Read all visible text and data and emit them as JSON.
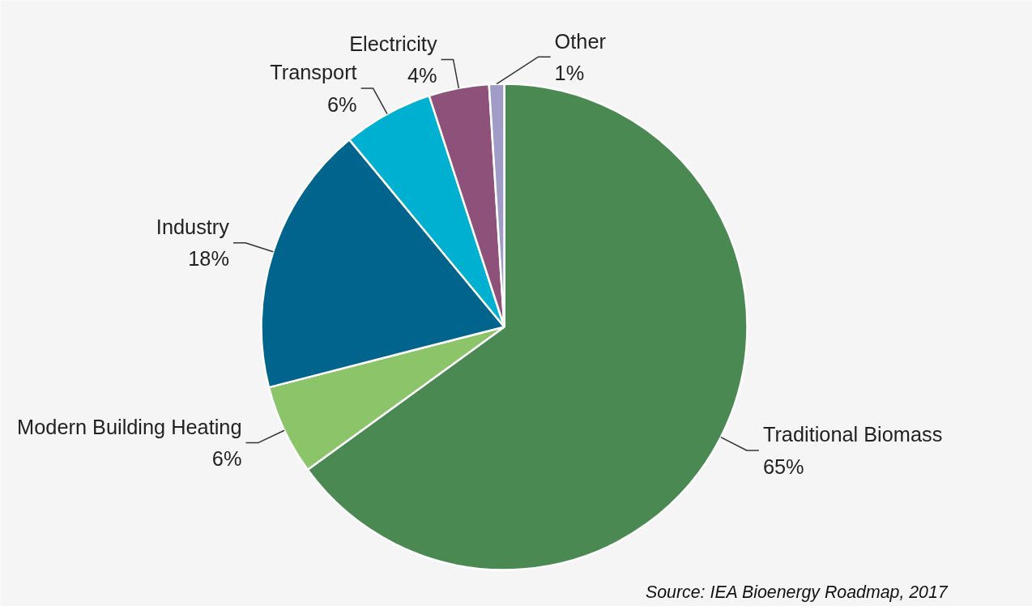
{
  "chart_data": {
    "type": "pie",
    "categories": [
      "Traditional Biomass",
      "Modern Building Heating",
      "Industry",
      "Transport",
      "Electricity",
      "Other"
    ],
    "values": [
      65,
      6,
      18,
      6,
      4,
      1
    ],
    "value_labels": [
      "65%",
      "6%",
      "18%",
      "6%",
      "4%",
      "1%"
    ],
    "colors": [
      "#4a8a52",
      "#8cc46a",
      "#00648c",
      "#00b0d0",
      "#8e527a",
      "#a09cc8"
    ],
    "annotations": [
      "Source: IEA Bioenergy Roadmap, 2017"
    ],
    "legend": false
  }
}
